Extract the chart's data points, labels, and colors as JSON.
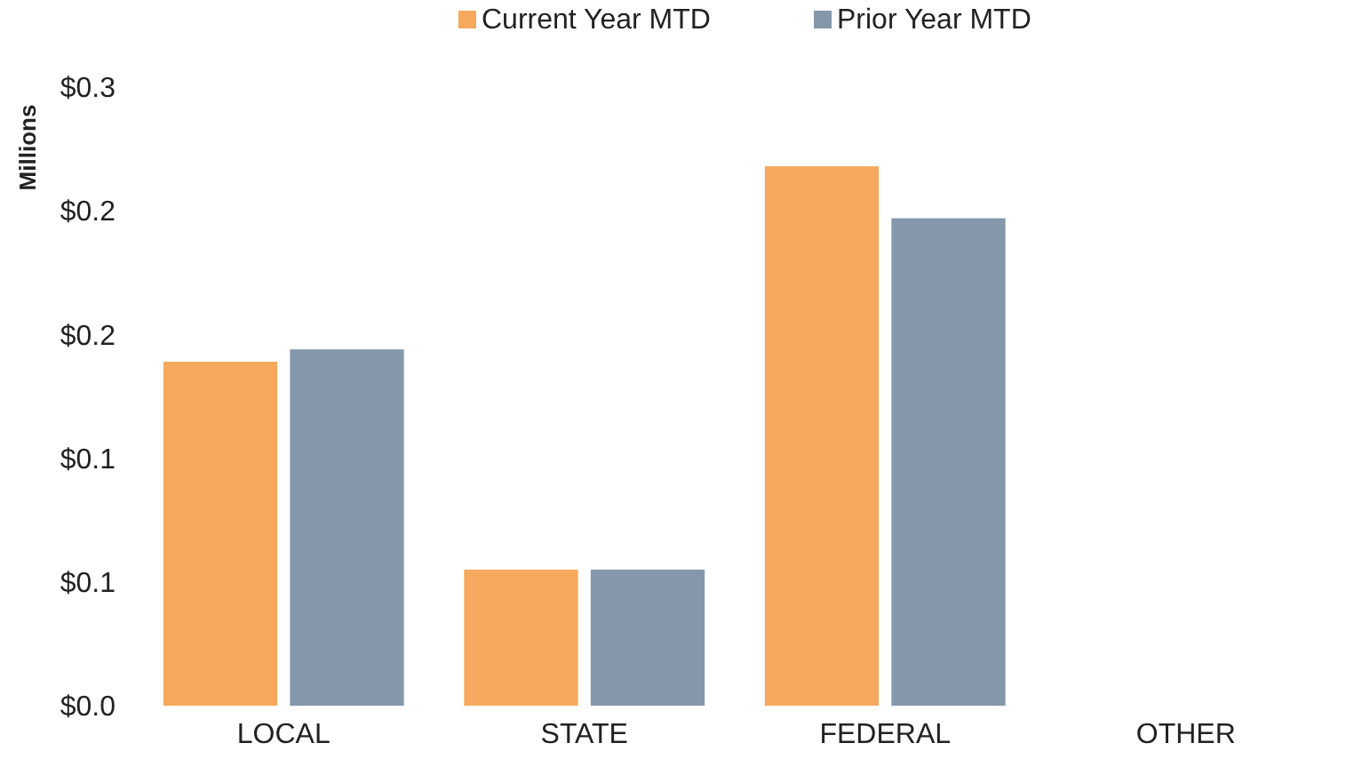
{
  "chart_data": {
    "type": "bar",
    "ylabel": "Millions",
    "categories": [
      "LOCAL",
      "STATE",
      "FEDERAL",
      "OTHER"
    ],
    "series": [
      {
        "name": "Current Year MTD",
        "color": "#f5a95c",
        "values": [
          0.139,
          0.055,
          0.218,
          null
        ]
      },
      {
        "name": "Prior Year MTD",
        "color": "#8497ab",
        "values": [
          0.144,
          0.055,
          0.197,
          null
        ]
      }
    ],
    "ylim": [
      0,
      0.25
    ],
    "yticks": [
      {
        "value": 0,
        "label": "$0.0"
      },
      {
        "value": 0.05,
        "label": "$0.1"
      },
      {
        "value": 0.1,
        "label": "$0.1"
      },
      {
        "value": 0.15,
        "label": "$0.2"
      },
      {
        "value": 0.2,
        "label": "$0.2"
      },
      {
        "value": 0.25,
        "label": "$0.3"
      }
    ],
    "grid": false,
    "legend": "top"
  }
}
